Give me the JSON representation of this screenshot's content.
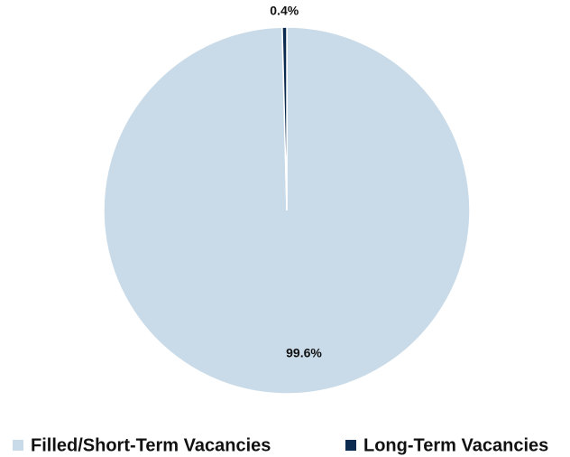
{
  "chart_data": {
    "type": "pie",
    "categories": [
      "Filled/Short-Term Vacancies",
      "Long-Term Vacancies"
    ],
    "values": [
      99.6,
      0.4
    ],
    "value_labels": [
      "99.6%",
      "0.4%"
    ],
    "colors": [
      "#c9dbe8",
      "#0b2a4f"
    ],
    "legend": "bottom"
  }
}
